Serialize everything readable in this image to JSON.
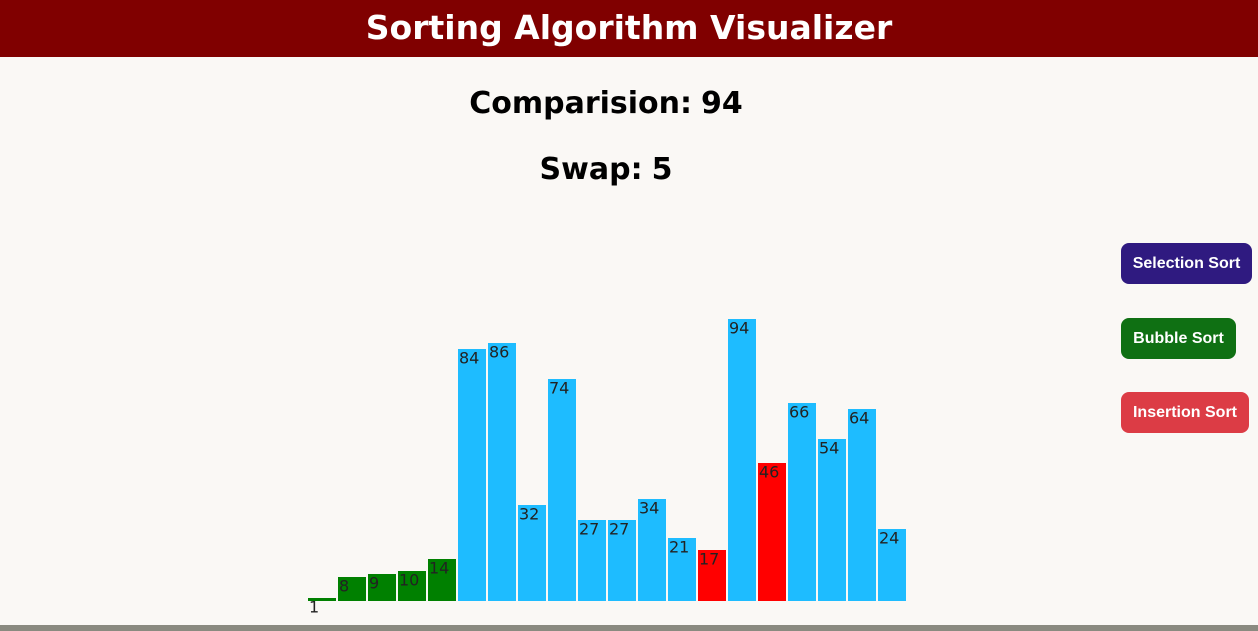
{
  "header": {
    "title": "Sorting Algorithm Visualizer"
  },
  "stats": {
    "comparisons": {
      "label": "Comparision:",
      "value": 94
    },
    "swaps": {
      "label": "Swap:",
      "value": 5
    }
  },
  "bars": {
    "values": [
      1,
      8,
      9,
      10,
      14,
      84,
      86,
      32,
      74,
      27,
      27,
      34,
      21,
      17,
      94,
      46,
      66,
      54,
      64,
      24
    ],
    "colors": [
      "#008000",
      "#008000",
      "#008000",
      "#008000",
      "#008000",
      "#1ebcff",
      "#1ebcff",
      "#1ebcff",
      "#1ebcff",
      "#1ebcff",
      "#1ebcff",
      "#1ebcff",
      "#1ebcff",
      "#ff0000",
      "#1ebcff",
      "#ff0000",
      "#1ebcff",
      "#1ebcff",
      "#1ebcff",
      "#1ebcff"
    ]
  },
  "buttons": [
    {
      "label": "Selection Sort",
      "color": "#2f1a80"
    },
    {
      "label": "Bubble Sort",
      "color": "#0f7013"
    },
    {
      "label": "Insertion Sort",
      "color": "#dc3c45"
    }
  ]
}
